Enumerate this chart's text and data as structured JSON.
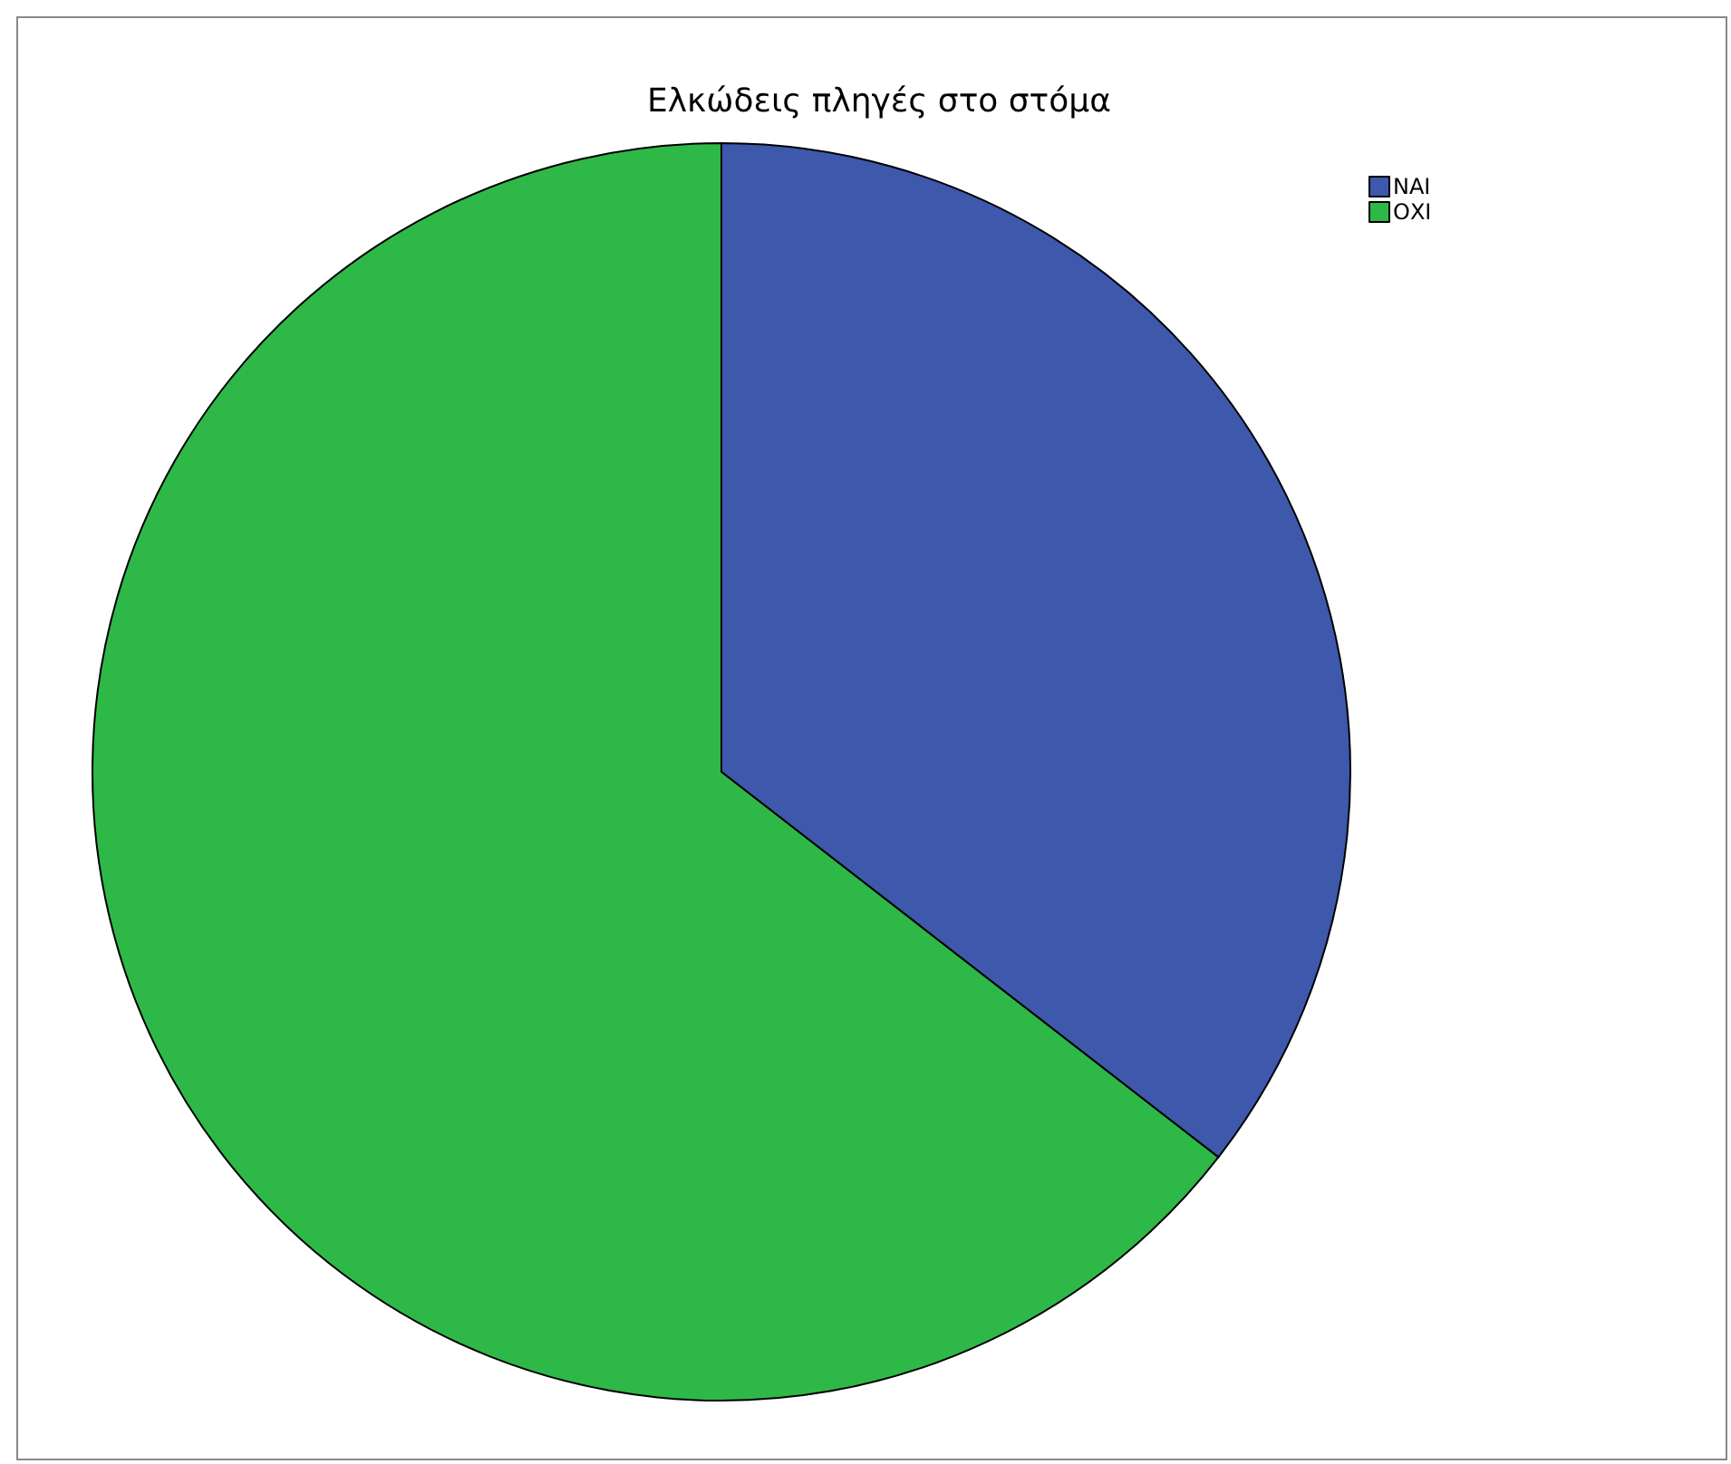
{
  "chart_data": {
    "type": "pie",
    "title": "Ελκώδεις πληγές στο στόμα",
    "categories": [
      "ΝΑΙ",
      "ΟΧΙ"
    ],
    "values": [
      35.5,
      64.5
    ],
    "colors": [
      "#3e58ac",
      "#2eb848"
    ],
    "legend": "top right"
  }
}
